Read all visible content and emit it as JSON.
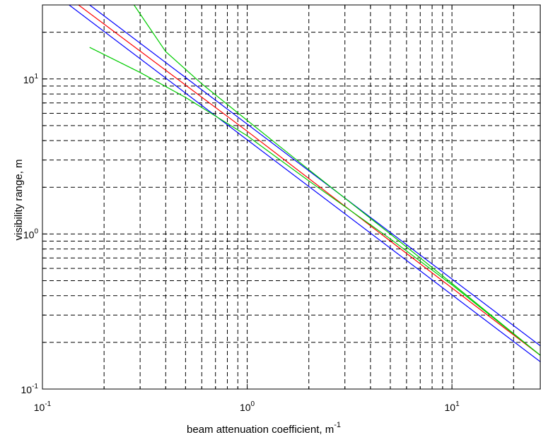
{
  "chart_data": {
    "type": "line",
    "xscale": "log",
    "yscale": "log",
    "xlim": [
      0.1,
      27
    ],
    "ylim": [
      0.1,
      30
    ],
    "grid": true,
    "xlabel": {
      "text": "beam attenuation coefficient, m",
      "superscript": "-1"
    },
    "ylabel": "visibility range, m",
    "xticks": [
      {
        "value": 0.1,
        "base": "10",
        "exp": "-1"
      },
      {
        "value": 1,
        "base": "10",
        "exp": "0"
      },
      {
        "value": 10,
        "base": "10",
        "exp": "1"
      }
    ],
    "yticks": [
      {
        "value": 0.1,
        "base": "10",
        "exp": "-1"
      },
      {
        "value": 1,
        "base": "10",
        "exp": "0"
      },
      {
        "value": 10,
        "base": "10",
        "exp": "1"
      }
    ],
    "series": [
      {
        "color": "#0000ff",
        "x": [
          0.135,
          27
        ],
        "y": [
          30,
          0.15
        ]
      },
      {
        "color": "#0000ff",
        "x": [
          0.17,
          27
        ],
        "y": [
          30,
          0.19
        ]
      },
      {
        "color": "#ff0000",
        "x": [
          0.15,
          1,
          5,
          27
        ],
        "y": [
          30,
          4.6,
          0.9,
          0.165
        ]
      },
      {
        "color": "#00cc00",
        "x": [
          0.28,
          0.4,
          0.6,
          1,
          2,
          5,
          10,
          27
        ],
        "y": [
          30,
          15,
          9.3,
          5.4,
          2.6,
          1.0,
          0.48,
          0.165
        ]
      },
      {
        "color": "#00cc00",
        "x": [
          0.17,
          0.3,
          0.5,
          1,
          2,
          5,
          10,
          27
        ],
        "y": [
          16,
          11,
          7.6,
          4.3,
          2.2,
          0.93,
          0.47,
          0.165
        ]
      }
    ]
  }
}
